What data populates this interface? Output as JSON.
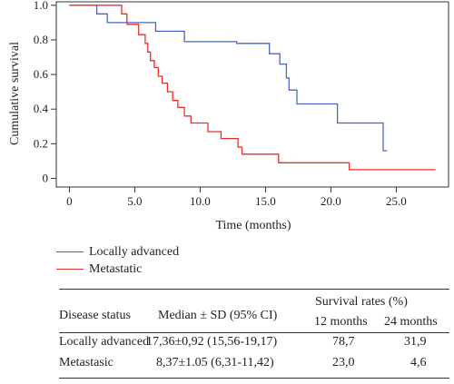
{
  "colors": {
    "locally_advanced": "#4a66c4",
    "metastatic": "#e8302b",
    "axis": "#333333"
  },
  "chart_data": {
    "type": "line",
    "step": true,
    "xlabel": "Time (months)",
    "ylabel": "Cumulative survival",
    "xlim": [
      -1,
      29
    ],
    "ylim": [
      -0.05,
      1.02
    ],
    "xticks": [
      0,
      5.0,
      10.0,
      15.0,
      20.0,
      25.0
    ],
    "xtick_labels": [
      "0",
      "5.0",
      "10.0",
      "15.0",
      "20.0",
      "25.0"
    ],
    "yticks": [
      0,
      0.2,
      0.4,
      0.6,
      0.8,
      1.0
    ],
    "ytick_labels": [
      "0",
      "0.2",
      "0.4",
      "0.6",
      "0.8",
      "1.0"
    ],
    "series": [
      {
        "name": "Locally advanced",
        "x": [
          0,
          2.1,
          2.9,
          6.6,
          8.8,
          12.8,
          15.3,
          16.1,
          16.6,
          16.8,
          17.4,
          20.5,
          24.0,
          24.3
        ],
        "y": [
          1.0,
          0.95,
          0.9,
          0.85,
          0.79,
          0.78,
          0.72,
          0.66,
          0.58,
          0.51,
          0.43,
          0.32,
          0.16,
          0.16
        ]
      },
      {
        "name": "Metastatic",
        "x": [
          0,
          4.0,
          4.4,
          5.3,
          5.8,
          6.0,
          6.2,
          6.5,
          6.8,
          7.1,
          7.5,
          7.9,
          8.3,
          8.8,
          9.3,
          9.9,
          10.6,
          11.6,
          12.9,
          13.2,
          13.6,
          16.0,
          21.4,
          28.0
        ],
        "y": [
          1.0,
          0.95,
          0.89,
          0.83,
          0.78,
          0.73,
          0.68,
          0.64,
          0.59,
          0.55,
          0.5,
          0.45,
          0.41,
          0.36,
          0.32,
          0.32,
          0.27,
          0.23,
          0.18,
          0.14,
          0.14,
          0.09,
          0.05,
          0.05
        ]
      }
    ]
  },
  "legend": {
    "items": [
      {
        "label": "Locally advanced",
        "color_key": "locally_advanced"
      },
      {
        "label": "Metastatic",
        "color_key": "metastatic"
      }
    ]
  },
  "table": {
    "headers": {
      "disease_status": "Disease status",
      "median": "Median ± SD (95% CI)",
      "survival_rates": "Survival rates (%)",
      "months12": "12 months",
      "months24": "24 months"
    },
    "rows": [
      {
        "status": "Locally advanced",
        "median": "17,36±0,92 (15,56-19,17)",
        "m12": "78,7",
        "m24": "31,9"
      },
      {
        "status": "Metastasic",
        "median": "8,37±1.05 (6,31-11,42)",
        "m12": "23,0",
        "m24": "4,6"
      }
    ]
  }
}
